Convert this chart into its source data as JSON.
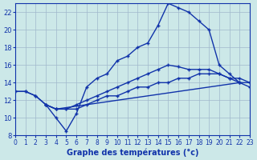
{
  "xlabel": "Graphe des températures (°c)",
  "bg_color": "#cce8e8",
  "grid_color": "#a0b8cc",
  "line_color": "#1133aa",
  "xlim": [
    0,
    23
  ],
  "ylim": [
    8,
    23
  ],
  "xticks": [
    0,
    1,
    2,
    3,
    4,
    5,
    6,
    7,
    8,
    9,
    10,
    11,
    12,
    13,
    14,
    15,
    16,
    17,
    18,
    19,
    20,
    21,
    22,
    23
  ],
  "yticks": [
    8,
    10,
    12,
    14,
    16,
    18,
    20,
    22
  ],
  "line1_x": [
    0,
    1,
    2,
    3,
    4,
    5,
    6,
    7,
    8,
    9,
    10,
    11,
    12,
    13,
    14,
    15,
    16,
    17,
    18,
    19,
    20,
    21,
    22
  ],
  "line1_y": [
    13,
    13,
    12.5,
    11.5,
    10,
    8.5,
    10.5,
    13.5,
    14.5,
    15,
    16.5,
    17,
    18,
    18.5,
    20.5,
    23,
    22.5,
    22,
    21.0,
    20,
    16,
    15,
    14
  ],
  "line2_x": [
    0,
    1,
    2,
    3,
    4,
    22,
    23
  ],
  "line2_y": [
    13,
    13,
    12.5,
    11.5,
    11,
    14,
    14
  ],
  "line3_x": [
    3,
    4,
    5,
    6,
    7,
    8,
    9,
    10,
    11,
    12,
    13,
    14,
    15,
    16,
    17,
    18,
    19,
    20,
    21,
    22,
    23
  ],
  "line3_y": [
    11.5,
    11,
    11,
    11.5,
    12,
    12.5,
    13,
    13.5,
    14,
    14.5,
    15,
    15.5,
    16,
    15.8,
    15.5,
    15.5,
    15.5,
    15,
    14.5,
    14.5,
    14
  ],
  "line4_x": [
    3,
    4,
    5,
    6,
    7,
    8,
    9,
    10,
    11,
    12,
    13,
    14,
    15,
    16,
    17,
    18,
    19,
    20,
    21,
    22,
    23
  ],
  "line4_y": [
    11.5,
    11,
    11,
    11,
    11.5,
    12,
    12.5,
    12.5,
    13,
    13.5,
    13.5,
    14,
    14,
    14.5,
    14.5,
    15,
    15,
    15,
    14.5,
    14,
    13.5
  ]
}
